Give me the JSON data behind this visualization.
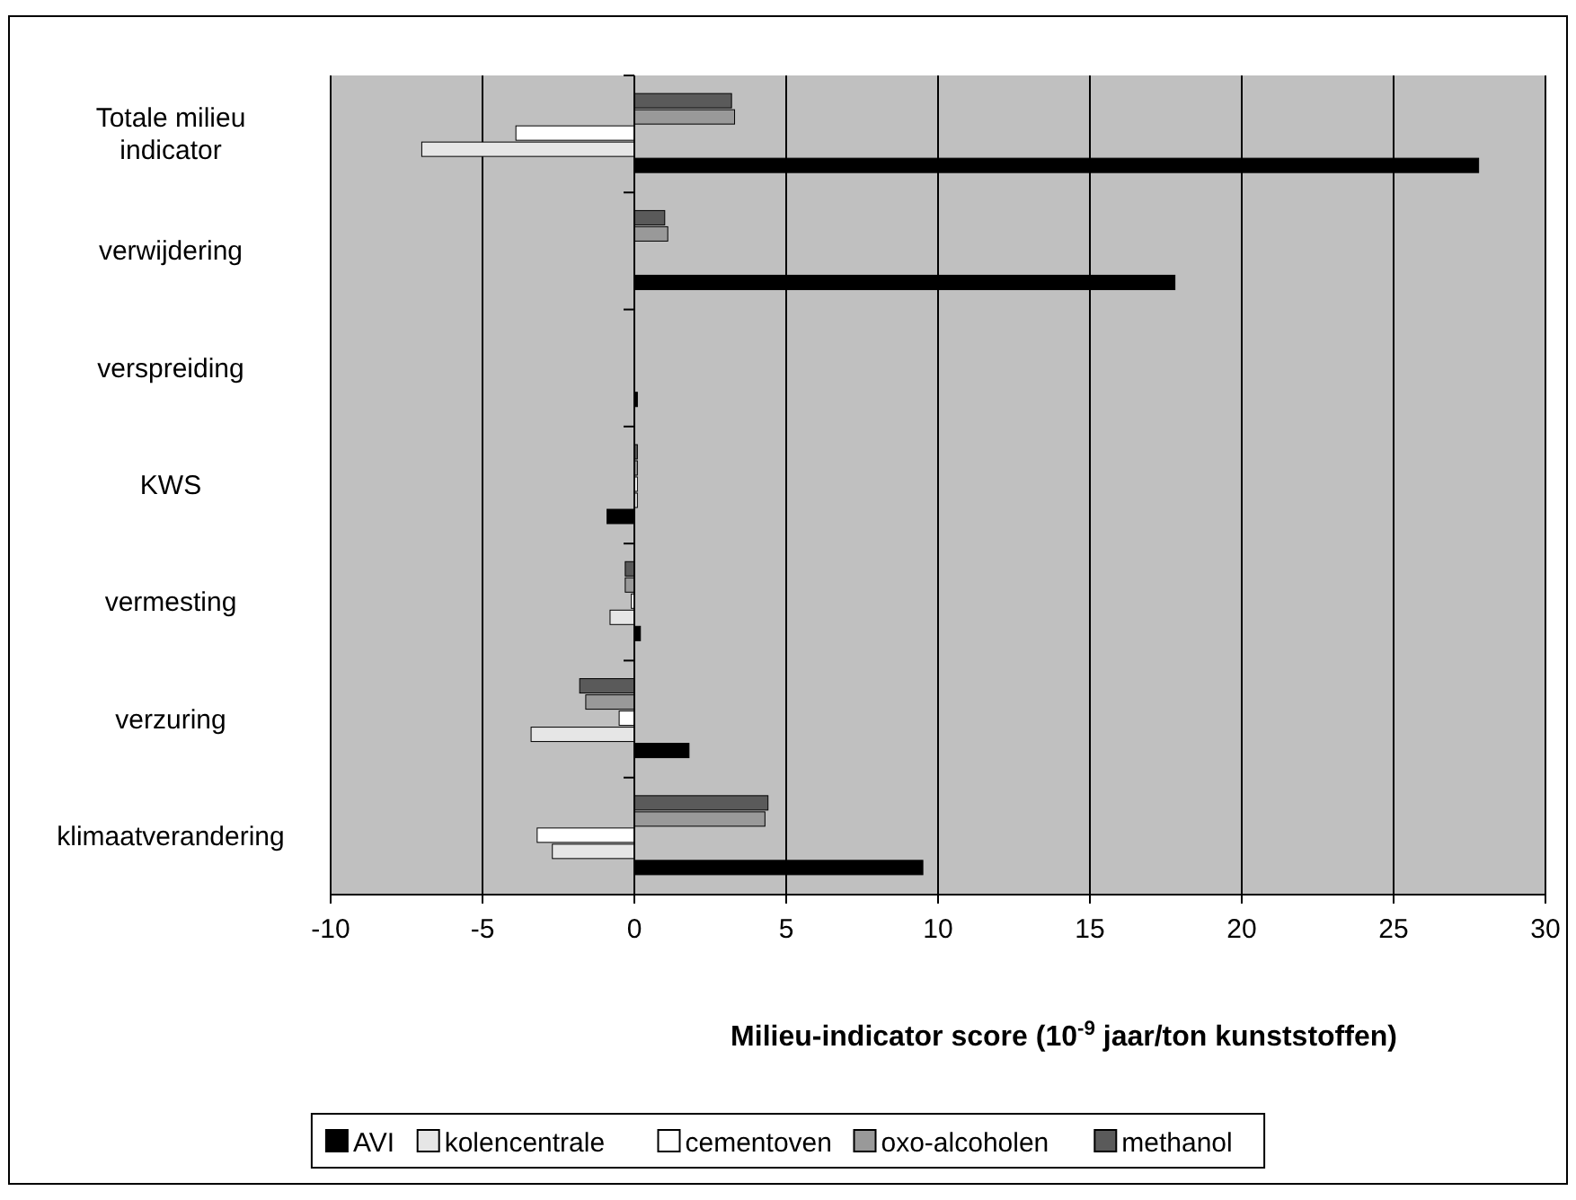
{
  "chart_data": {
    "type": "bar",
    "orientation": "horizontal",
    "xlabel": "Milieu-indicator score (10$^{-9}$ jaar/ton kunststoffen)",
    "categories": [
      "Totale milieu indicator",
      "verwijdering",
      "verspreiding",
      "KWS",
      "vermesting",
      "verzuring",
      "klimaatverandering"
    ],
    "series": [
      {
        "name": "AVI",
        "color": "#000000",
        "values": [
          27.8,
          17.8,
          0.1,
          -0.9,
          0.2,
          1.8,
          9.5
        ]
      },
      {
        "name": "kolencentrale",
        "color": "#e6e6e6",
        "values": [
          -7.0,
          0,
          0,
          0.1,
          -0.8,
          -3.4,
          -2.7
        ]
      },
      {
        "name": "cementoven",
        "color": "#ffffff",
        "values": [
          -3.9,
          0,
          0,
          0.1,
          -0.1,
          -0.5,
          -3.2
        ]
      },
      {
        "name": "oxo-alcoholen",
        "color": "#999999",
        "values": [
          3.3,
          1.1,
          0,
          0.1,
          -0.3,
          -1.6,
          4.3
        ]
      },
      {
        "name": "methanol",
        "color": "#5a5a5a",
        "values": [
          3.2,
          1.0,
          0,
          0.1,
          -0.3,
          -1.8,
          4.4
        ]
      }
    ],
    "xlim": [
      -10,
      30
    ],
    "xticks": [
      -10,
      -5,
      0,
      5,
      10,
      15,
      20,
      25,
      30
    ],
    "grid": "x",
    "legend": "bottom"
  }
}
